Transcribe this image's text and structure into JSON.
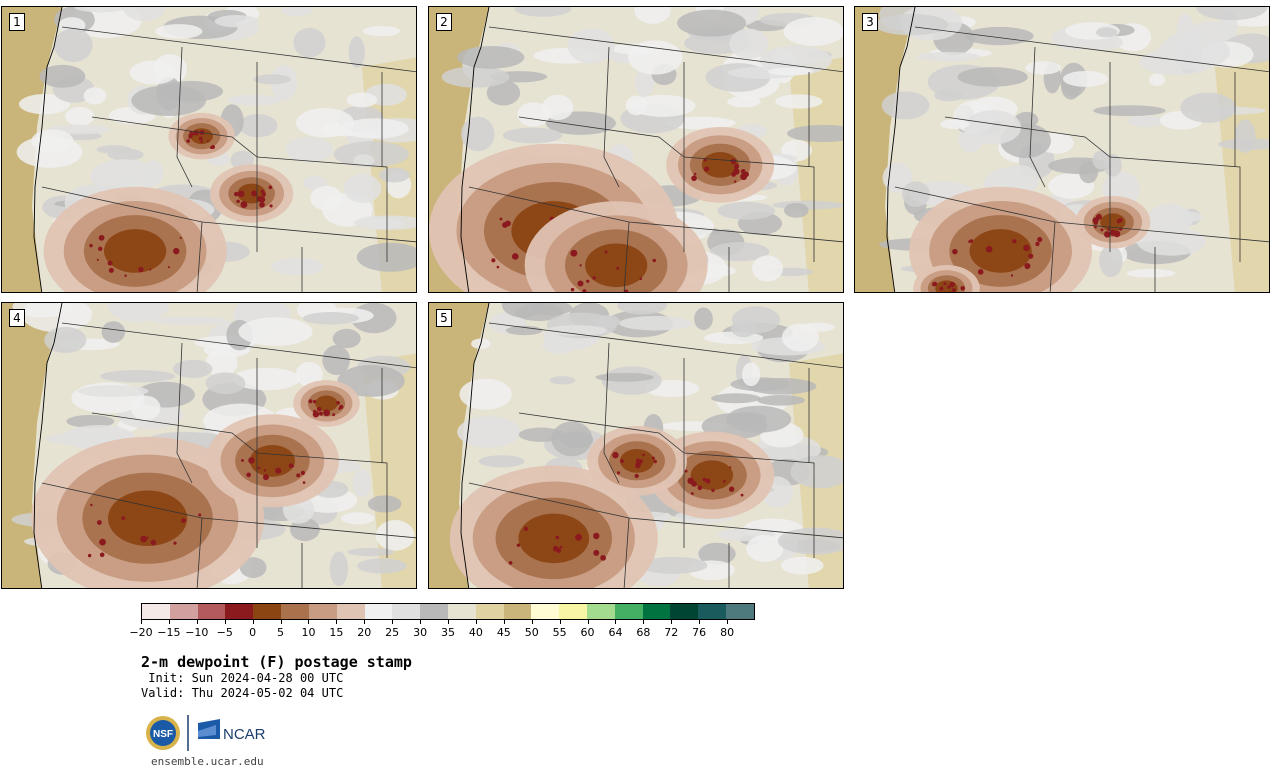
{
  "panels": [
    {
      "label": "1"
    },
    {
      "label": "2"
    },
    {
      "label": "3"
    },
    {
      "label": "4"
    },
    {
      "label": "5"
    }
  ],
  "colorbar": {
    "colors": [
      "#f4e9e6",
      "#d3a0a0",
      "#b25a5c",
      "#8b1a1e",
      "#8b4513",
      "#a9714c",
      "#c79c82",
      "#e0c4b3",
      "#f0f0f0",
      "#e0e0e0",
      "#b9b9b9",
      "#e6e3d3",
      "#e1d2a2",
      "#c9b47a",
      "#fffbd2",
      "#f8f6a5",
      "#a3db8f",
      "#43b064",
      "#017340",
      "#004433",
      "#1a5b5e",
      "#4f7a7d"
    ],
    "ticks": [
      "−20",
      "−15",
      "−10",
      "−5",
      "0",
      "5",
      "10",
      "15",
      "20",
      "25",
      "30",
      "35",
      "40",
      "45",
      "50",
      "55",
      "60",
      "64",
      "68",
      "72",
      "76",
      "80"
    ]
  },
  "title": "2-m dewpoint (F) postage stamp",
  "init": " Init: Sun 2024-04-28 00 UTC",
  "valid": "Valid: Thu 2024-05-02 04 UTC",
  "logos": {
    "nsf": "NSF",
    "ncar": "NCAR"
  },
  "url": "ensemble.ucar.edu"
}
